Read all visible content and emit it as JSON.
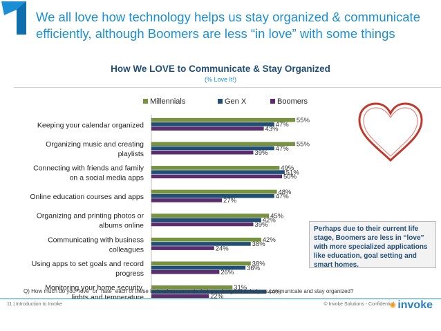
{
  "slide": {
    "headline": "We all love how technology helps us stay organized & communicate efficiently, although Boomers are less “in love” with some things",
    "callout": "Perhaps due to their current life stage, Boomers are less in “love” with more specialized applications like education, goal setting and smart homes.",
    "question": "Q) How much do you \"love\" or \"hate\" each of these tech advancements that are designed to help us communicate and stay organized?",
    "footer_left": "11  |  Introduction to Invoke",
    "footer_right": "© Invoke Solutions - Confidential",
    "logo": "invoke"
  },
  "colors": {
    "headline": "#1a8fd6",
    "millennials": "#77933c",
    "genx": "#1f4e79",
    "boomers": "#5b2c6f",
    "heart": "#c0392b"
  },
  "chart_data": {
    "type": "bar",
    "orientation": "horizontal",
    "title": "How We LOVE to Communicate & Stay Organized",
    "subtitle": "(% Love It!)",
    "legend_position": "top",
    "categories": [
      [
        "Keeping your calendar organized"
      ],
      [
        "Organizing music and creating",
        "playlists"
      ],
      [
        "Connecting with friends and family",
        "on a social media apps"
      ],
      [
        "Online education courses and apps"
      ],
      [
        "Organizing and printing photos or",
        "albums online"
      ],
      [
        "Communicating with business",
        "colleagues"
      ],
      [
        "Using apps to set goals and record",
        "progress"
      ],
      [
        "Monitoring your home security,",
        "lights and temperature"
      ]
    ],
    "series": [
      {
        "name": "Millennials",
        "values": [
          55,
          55,
          49,
          48,
          45,
          42,
          38,
          31
        ]
      },
      {
        "name": "Gen X",
        "values": [
          47,
          47,
          51,
          47,
          42,
          38,
          36,
          44
        ]
      },
      {
        "name": "Boomers",
        "values": [
          43,
          39,
          50,
          27,
          39,
          24,
          26,
          22
        ]
      }
    ],
    "value_suffix": "%",
    "xlim": [
      0,
      60
    ]
  }
}
